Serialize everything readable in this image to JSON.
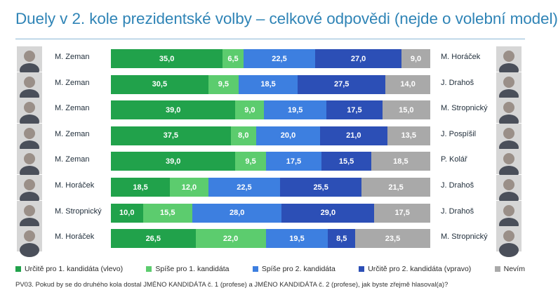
{
  "title": "Duely v 2. kole prezidentské volby – celkové odpovědi (nejde o volební model)",
  "footnote": "PV03. Pokud by se do druhého kola dostal JMÉNO KANDIDÁTA č. 1 (profese) a JMÉNO KANDIDÁTA č. 2 (profese), jak byste zřejmě hlasoval(a)?",
  "colors": {
    "s1": "#21a24b",
    "s2": "#5ccc6e",
    "s3": "#3d7fe0",
    "s4": "#2c4fb6",
    "s5": "#a9a9a9"
  },
  "chart_data": {
    "type": "bar",
    "orientation": "horizontal",
    "stacked": true,
    "xlim": [
      0,
      100
    ],
    "legend": "bottom",
    "categories": [
      "M. Zeman – M. Horáček",
      "M. Zeman – J. Drahoš",
      "M. Zeman – M. Stropnický",
      "M. Zeman – J. Pospíšil",
      "M. Zeman – P. Kolář",
      "M. Horáček – J. Drahoš",
      "M. Stropnický – J. Drahoš",
      "M. Horáček – M. Stropnický"
    ],
    "series": [
      {
        "name": "Určitě pro 1. kandidáta (vlevo)",
        "values": [
          35.0,
          30.5,
          39.0,
          37.5,
          39.0,
          18.5,
          10.0,
          26.5
        ]
      },
      {
        "name": "Spíše pro 1. kandidáta",
        "values": [
          6.5,
          9.5,
          9.0,
          8.0,
          9.5,
          12.0,
          15.5,
          22.0
        ]
      },
      {
        "name": "Spíše pro 2. kandidáta",
        "values": [
          22.5,
          18.5,
          19.5,
          20.0,
          17.5,
          22.5,
          28.0,
          19.5
        ]
      },
      {
        "name": "Určitě pro 2. kandidáta (vpravo)",
        "values": [
          27.0,
          27.5,
          17.5,
          21.0,
          15.5,
          25.5,
          29.0,
          8.5
        ]
      },
      {
        "name": "Nevím",
        "values": [
          9.0,
          14.0,
          15.0,
          13.5,
          18.5,
          21.5,
          17.5,
          23.5
        ]
      }
    ],
    "labels": [
      [
        "35,0",
        "6,5",
        "22,5",
        "27,0",
        "9,0"
      ],
      [
        "30,5",
        "9,5",
        "18,5",
        "27,5",
        "14,0"
      ],
      [
        "39,0",
        "9,0",
        "19,5",
        "17,5",
        "15,0"
      ],
      [
        "37,5",
        "8,0",
        "20,0",
        "21,0",
        "13,5"
      ],
      [
        "39,0",
        "9,5",
        "17,5",
        "15,5",
        "18,5"
      ],
      [
        "18,5",
        "12,0",
        "22,5",
        "25,5",
        "21,5"
      ],
      [
        "10,0",
        "15,5",
        "28,0",
        "29,0",
        "17,5"
      ],
      [
        "26,5",
        "22,0",
        "19,5",
        "8,5",
        "23,5"
      ]
    ],
    "left_names": [
      "M. Zeman",
      "M. Zeman",
      "M. Zeman",
      "M. Zeman",
      "M. Zeman",
      "M. Horáček",
      "M. Stropnický",
      "M. Horáček"
    ],
    "right_names": [
      "M. Horáček",
      "J. Drahoš",
      "M. Stropnický",
      "J. Pospíšil",
      "P. Kolář",
      "J. Drahoš",
      "J. Drahoš",
      "M. Stropnický"
    ]
  }
}
